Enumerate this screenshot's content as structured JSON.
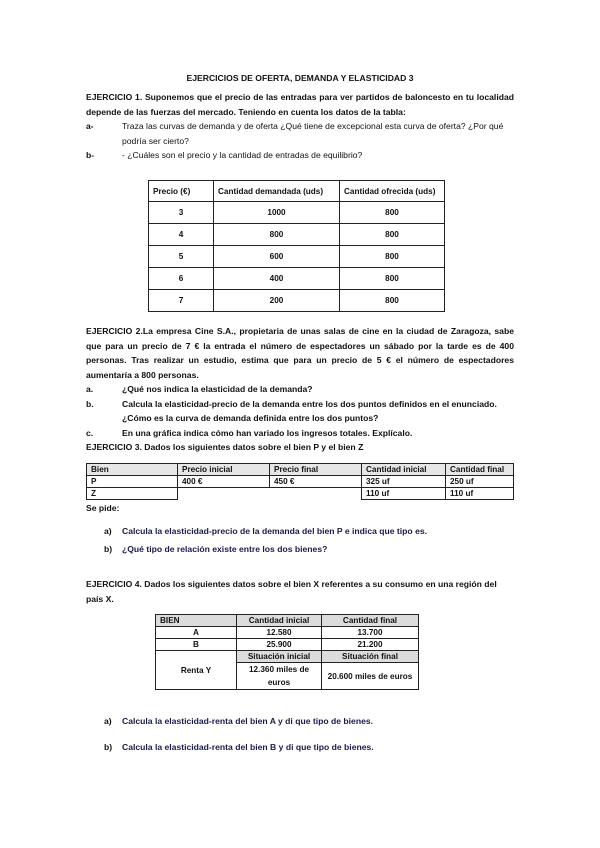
{
  "title": "EJERCICIOS DE OFERTA, DEMANDA Y ELASTICIDAD 3",
  "ex1": {
    "heading": "EJERCICIO 1.",
    "text": " Suponemos que el precio de las entradas para ver partidos de baloncesto en tu localidad depende de las fuerzas del mercado. Teniendo en cuenta los datos de la tabla:",
    "items": [
      {
        "label": "a-",
        "text": "Traza las curvas de demanda y de oferta ¿Qué tiene de excepcional esta curva de oferta? ¿Por qué podría ser cierto?"
      },
      {
        "label": "b-",
        "text": "- ¿Cuáles son el precio y la cantidad de entradas de equilibrio?"
      }
    ],
    "table": {
      "headers": [
        "Precio (€)",
        "Cantidad demandada (uds)",
        "Cantidad ofrecida (uds)"
      ],
      "rows": [
        [
          "3",
          "1000",
          "800"
        ],
        [
          "4",
          "800",
          "800"
        ],
        [
          "5",
          "600",
          "800"
        ],
        [
          "6",
          "400",
          "800"
        ],
        [
          "7",
          "200",
          "800"
        ]
      ]
    }
  },
  "ex2": {
    "heading": "EJERCICIO 2.",
    "text": "La empresa Cine S.A., propietaria de unas salas de cine en la ciudad de Zaragoza, sabe que para un precio de 7 € la entrada el número de espectadores un sábado por la tarde es de 400 personas. Tras realizar un estudio, estima que para un precio de 5 € el número de espectadores aumentaría a 800 personas.",
    "items": [
      {
        "label": "a.",
        "text": "¿Qué nos indica la elasticidad de la demanda?"
      },
      {
        "label": "b.",
        "text": "Calcula la elasticidad-precio de la demanda entre los dos puntos definidos en el enunciado. ¿Cómo es la curva de demanda definida entre los dos puntos?"
      },
      {
        "label": "c.",
        "text": "En una gráfica indica cómo han variado los ingresos totales. Explícalo."
      }
    ]
  },
  "ex3": {
    "heading": "EJERCICIO 3.",
    "text": " Dados los siguientes datos sobre el bien P y el bien Z",
    "table": {
      "headers": [
        "Bien",
        "Precio inicial",
        "Precio final",
        "Cantidad inicial",
        "Cantidad final"
      ],
      "rows": [
        [
          "P",
          "400 €",
          "450 €",
          "325 uf",
          "250 uf"
        ],
        [
          "Z",
          "",
          "",
          "110 uf",
          "110 uf"
        ]
      ]
    },
    "se_pide": "Se pide:",
    "items": [
      {
        "label": "a)",
        "text": "Calcula la elasticidad-precio de la demanda del bien P e indica que tipo es."
      },
      {
        "label": "b)",
        "text": "¿Qué tipo de relación existe entre los dos bienes?"
      }
    ]
  },
  "ex4": {
    "heading": "EJERCICIO 4.",
    "text": " Dados los siguientes datos sobre el bien X referentes a su consumo en una región del país X.",
    "table": {
      "headers": [
        "BIEN",
        "Cantidad inicial",
        "Cantidad final"
      ],
      "rows": [
        [
          "A",
          "12.580",
          "13.700"
        ],
        [
          "B",
          "25.900",
          "21.200"
        ]
      ],
      "renta_label": "Renta Y",
      "renta_headers": [
        "Situación inicial",
        "Situación final"
      ],
      "renta_values": [
        "12.360 miles de euros",
        "20.600 miles de euros"
      ]
    },
    "items": [
      {
        "label": "a)",
        "text": "Calcula la elasticidad-renta del bien A y di que tipo de bienes."
      },
      {
        "label": "b)",
        "text": "Calcula la elasticidad-renta del bien B y di que tipo de bienes."
      }
    ]
  }
}
